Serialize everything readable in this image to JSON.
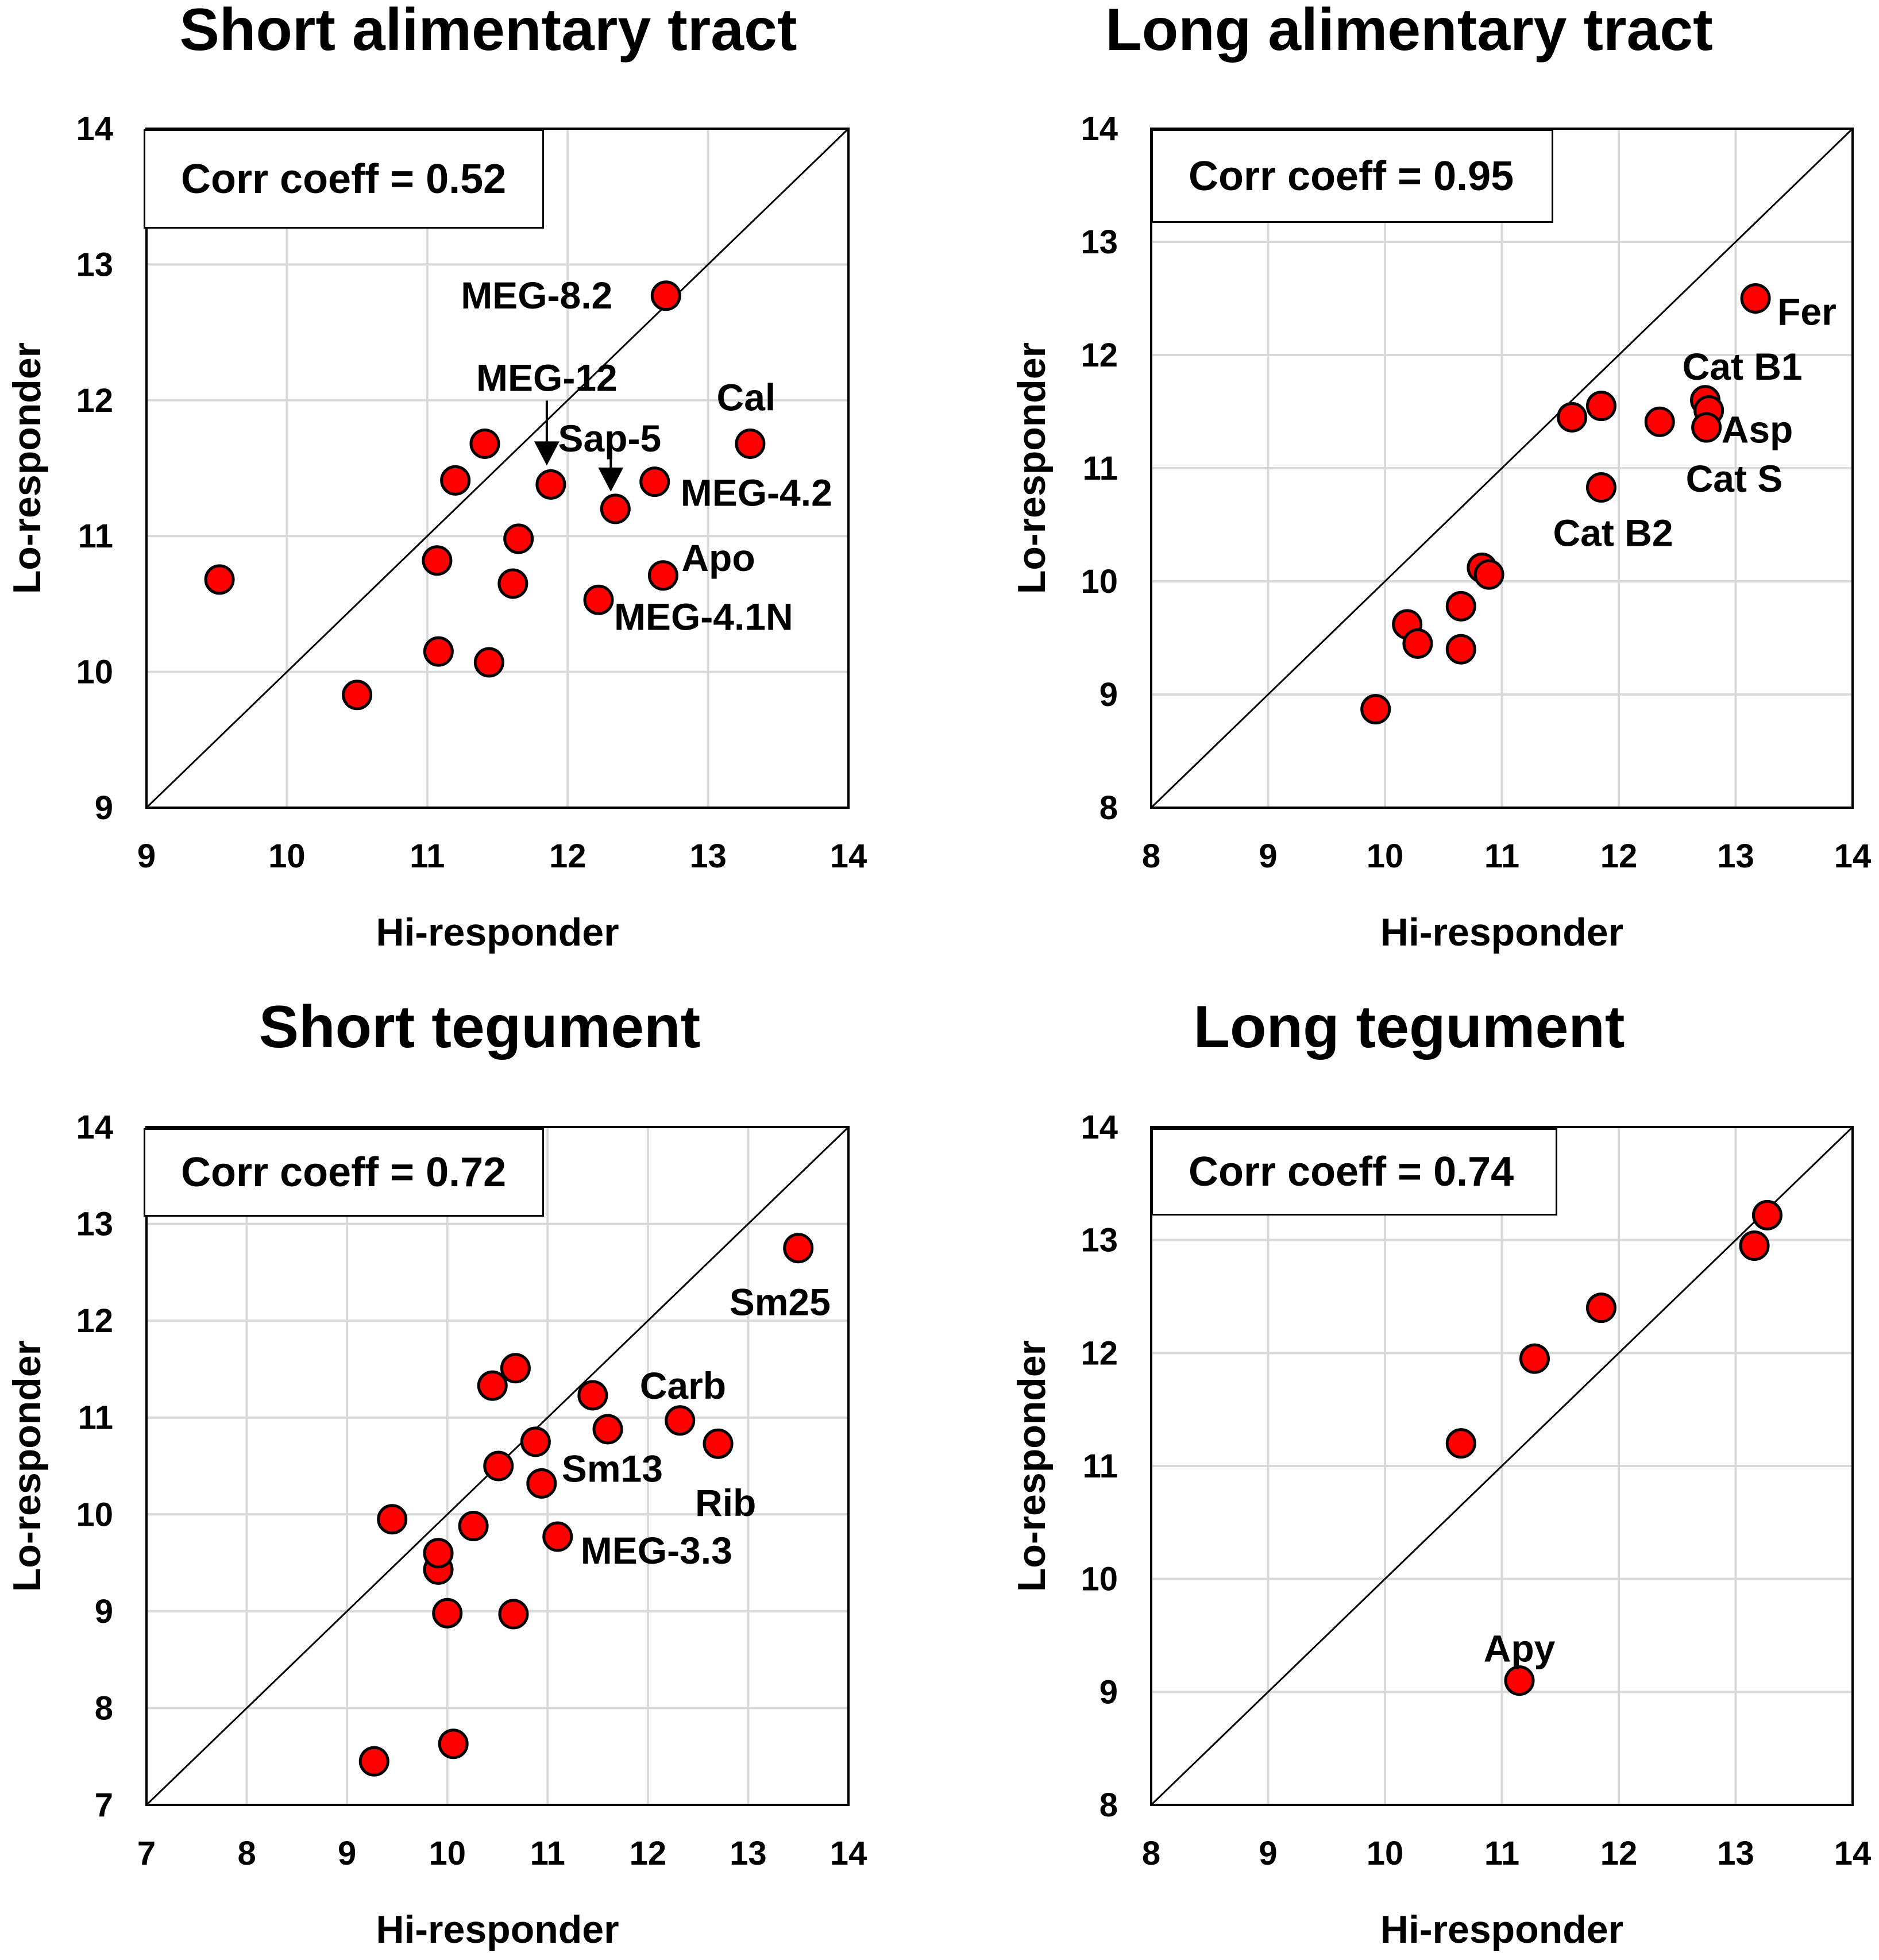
{
  "colors": {
    "marker_fill": "#ff0000",
    "marker_stroke": "#000000",
    "grid": "#d9d9d9",
    "axis": "#000000"
  },
  "chart_data": [
    {
      "type": "scatter",
      "title": "Short alimentary tract",
      "xlabel": "Hi-responder",
      "ylabel": "Lo-responder",
      "xlim": [
        9,
        14
      ],
      "ylim": [
        9,
        14
      ],
      "xticks": [
        "9",
        "10",
        "11",
        "12",
        "13",
        "14"
      ],
      "yticks": [
        "9",
        "10",
        "11",
        "12",
        "13",
        "14"
      ],
      "correlation_label": "Corr coeff = 0.52",
      "reference_line": "y = x",
      "points": [
        {
          "x": 9.52,
          "y": 10.68,
          "label": ""
        },
        {
          "x": 10.5,
          "y": 9.83,
          "label": ""
        },
        {
          "x": 11.07,
          "y": 10.82,
          "label": ""
        },
        {
          "x": 11.08,
          "y": 10.15,
          "label": ""
        },
        {
          "x": 11.2,
          "y": 11.41,
          "label": ""
        },
        {
          "x": 11.41,
          "y": 11.68,
          "label": ""
        },
        {
          "x": 11.44,
          "y": 10.07,
          "label": ""
        },
        {
          "x": 11.61,
          "y": 10.65,
          "label": ""
        },
        {
          "x": 11.65,
          "y": 10.98,
          "label": ""
        },
        {
          "x": 11.88,
          "y": 11.38,
          "label": "MEG-12"
        },
        {
          "x": 12.22,
          "y": 10.53,
          "label": "MEG-4.1N"
        },
        {
          "x": 12.34,
          "y": 11.2,
          "label": "Sap-5"
        },
        {
          "x": 12.62,
          "y": 11.4,
          "label": "MEG-4.2"
        },
        {
          "x": 12.68,
          "y": 10.71,
          "label": "Apo"
        },
        {
          "x": 12.7,
          "y": 12.77,
          "label": "MEG-8.2"
        },
        {
          "x": 13.3,
          "y": 11.68,
          "label": "Cal"
        }
      ]
    },
    {
      "type": "scatter",
      "title": "Long alimentary tract",
      "xlabel": "Hi-responder",
      "ylabel": "Lo-responder",
      "xlim": [
        8,
        14
      ],
      "ylim": [
        8,
        14
      ],
      "xticks": [
        "8",
        "9",
        "10",
        "11",
        "12",
        "13",
        "14"
      ],
      "yticks": [
        "8",
        "9",
        "10",
        "11",
        "12",
        "13",
        "14"
      ],
      "correlation_label": "Corr coeff = 0.95",
      "reference_line": "y = x",
      "points": [
        {
          "x": 9.92,
          "y": 8.87,
          "label": ""
        },
        {
          "x": 10.19,
          "y": 9.62,
          "label": ""
        },
        {
          "x": 10.28,
          "y": 9.45,
          "label": ""
        },
        {
          "x": 10.65,
          "y": 9.78,
          "label": ""
        },
        {
          "x": 10.65,
          "y": 9.4,
          "label": ""
        },
        {
          "x": 10.83,
          "y": 10.12,
          "label": ""
        },
        {
          "x": 10.89,
          "y": 10.06,
          "label": ""
        },
        {
          "x": 11.6,
          "y": 11.45,
          "label": ""
        },
        {
          "x": 11.85,
          "y": 11.55,
          "label": ""
        },
        {
          "x": 11.85,
          "y": 10.83,
          "label": "Cat B2"
        },
        {
          "x": 12.35,
          "y": 11.41,
          "label": ""
        },
        {
          "x": 12.74,
          "y": 11.6,
          "label": "Cat B1"
        },
        {
          "x": 12.77,
          "y": 11.51,
          "label": "Asp"
        },
        {
          "x": 12.75,
          "y": 11.36,
          "label": "Cat S"
        },
        {
          "x": 13.17,
          "y": 12.5,
          "label": "Fer"
        }
      ]
    },
    {
      "type": "scatter",
      "title": "Short tegument",
      "xlabel": "Hi-responder",
      "ylabel": "Lo-responder",
      "xlim": [
        7,
        14
      ],
      "ylim": [
        7,
        14
      ],
      "xticks": [
        "7",
        "8",
        "9",
        "10",
        "11",
        "12",
        "13",
        "14"
      ],
      "yticks": [
        "7",
        "8",
        "9",
        "10",
        "11",
        "12",
        "13",
        "14"
      ],
      "correlation_label": "Corr coeff = 0.72",
      "reference_line": "y = x",
      "points": [
        {
          "x": 9.27,
          "y": 7.45,
          "label": ""
        },
        {
          "x": 9.45,
          "y": 9.95,
          "label": ""
        },
        {
          "x": 9.91,
          "y": 9.43,
          "label": ""
        },
        {
          "x": 9.91,
          "y": 9.6,
          "label": ""
        },
        {
          "x": 10.0,
          "y": 8.98,
          "label": ""
        },
        {
          "x": 10.06,
          "y": 7.63,
          "label": ""
        },
        {
          "x": 10.26,
          "y": 9.88,
          "label": ""
        },
        {
          "x": 10.45,
          "y": 11.33,
          "label": ""
        },
        {
          "x": 10.51,
          "y": 10.5,
          "label": ""
        },
        {
          "x": 10.66,
          "y": 8.97,
          "label": ""
        },
        {
          "x": 10.68,
          "y": 11.51,
          "label": ""
        },
        {
          "x": 10.88,
          "y": 10.75,
          "label": ""
        },
        {
          "x": 10.94,
          "y": 10.32,
          "label": "Sm13"
        },
        {
          "x": 11.1,
          "y": 9.77,
          "label": "MEG-3.3"
        },
        {
          "x": 11.45,
          "y": 11.23,
          "label": ""
        },
        {
          "x": 11.6,
          "y": 10.88,
          "label": ""
        },
        {
          "x": 12.32,
          "y": 10.97,
          "label": "Carb"
        },
        {
          "x": 12.7,
          "y": 10.73,
          "label": "Rib"
        },
        {
          "x": 13.5,
          "y": 12.75,
          "label": "Sm25"
        }
      ]
    },
    {
      "type": "scatter",
      "title": "Long tegument",
      "xlabel": "Hi-responder",
      "ylabel": "Lo-responder",
      "xlim": [
        8,
        14
      ],
      "ylim": [
        8,
        14
      ],
      "xticks": [
        "8",
        "9",
        "10",
        "11",
        "12",
        "13",
        "14"
      ],
      "yticks": [
        "8",
        "9",
        "10",
        "11",
        "12",
        "13",
        "14"
      ],
      "correlation_label": "Corr coeff = 0.74",
      "reference_line": "y = x",
      "points": [
        {
          "x": 10.65,
          "y": 11.2,
          "label": ""
        },
        {
          "x": 11.28,
          "y": 11.95,
          "label": ""
        },
        {
          "x": 11.85,
          "y": 12.4,
          "label": ""
        },
        {
          "x": 11.15,
          "y": 9.1,
          "label": "Apy"
        },
        {
          "x": 13.16,
          "y": 12.95,
          "label": ""
        },
        {
          "x": 13.27,
          "y": 13.22,
          "label": ""
        }
      ]
    }
  ]
}
